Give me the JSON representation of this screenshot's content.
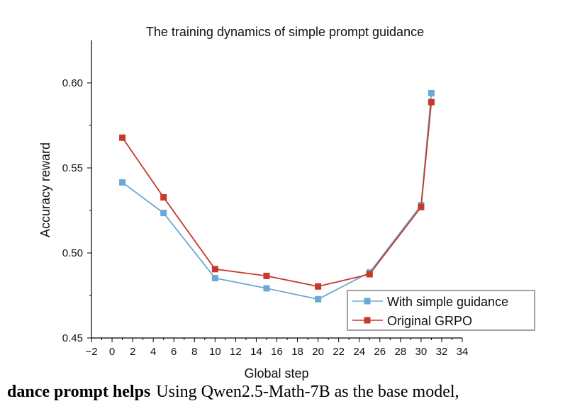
{
  "chart_data": {
    "type": "line",
    "title": "The training dynamics of simple prompt guidance",
    "xlabel": "Global step",
    "ylabel": "Accuracy reward",
    "xlim": [
      -2,
      34
    ],
    "ylim": [
      0.45,
      0.625
    ],
    "x_ticks": [
      -2,
      0,
      2,
      4,
      6,
      8,
      10,
      12,
      14,
      16,
      18,
      20,
      22,
      24,
      26,
      28,
      30,
      32,
      34
    ],
    "y_ticks": [
      0.45,
      0.5,
      0.55,
      0.6
    ],
    "y_tick_labels": [
      "0.45",
      "0.50",
      "0.55",
      "0.60"
    ],
    "grid": false,
    "legend_position": "bottom-right",
    "series": [
      {
        "name": "With simple guidance",
        "color": "#6AA9D3",
        "marker": "square",
        "x": [
          1,
          5,
          10,
          15,
          20,
          25,
          30,
          31
        ],
        "y": [
          0.5415,
          0.5235,
          0.4852,
          0.4792,
          0.4728,
          0.4885,
          0.528,
          0.594
        ]
      },
      {
        "name": "Original GRPO",
        "color": "#C8392B",
        "marker": "square",
        "x": [
          1,
          5,
          10,
          15,
          20,
          25,
          30,
          31
        ],
        "y": [
          0.5678,
          0.5327,
          0.4905,
          0.4865,
          0.4803,
          0.4875,
          0.527,
          0.5887
        ]
      }
    ]
  },
  "caption": {
    "bold": "dance prompt helps",
    "rest": "Using Qwen2.5-Math-7B as the base model,"
  }
}
